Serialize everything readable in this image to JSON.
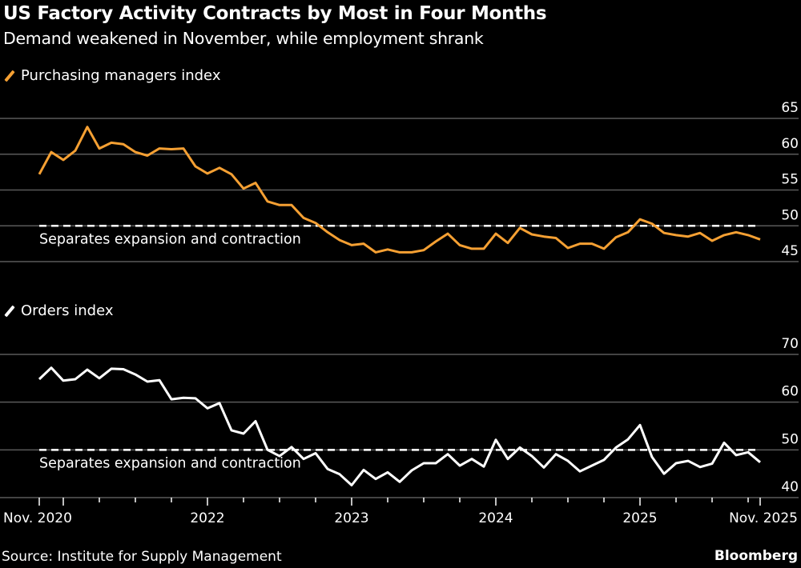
{
  "header": {
    "title": "US Factory Activity Contracts by Most in Four Months",
    "subtitle": "Demand weakened in November, while employment shrank"
  },
  "footer": {
    "source": "Source: Institute for Supply Management",
    "brand": "Bloomberg"
  },
  "colors": {
    "pmi": "#f5a033",
    "orders": "#ffffff",
    "grid": "#5a5a5a",
    "background": "#000000"
  },
  "chart_data": [
    {
      "type": "line",
      "x_start": "2020-11",
      "x_end": "2025-11",
      "x_frequency": "monthly",
      "series": [
        {
          "name": "Purchasing managers index",
          "color": "#f5a033",
          "values": [
            57.2,
            60.3,
            59.2,
            60.5,
            63.8,
            60.8,
            61.6,
            61.4,
            60.3,
            59.8,
            60.8,
            60.7,
            60.8,
            58.3,
            57.3,
            58.1,
            57.2,
            55.2,
            56.0,
            53.4,
            52.9,
            52.9,
            51.1,
            50.4,
            49.1,
            48.0,
            47.3,
            47.5,
            46.3,
            46.7,
            46.3,
            46.3,
            46.6,
            47.8,
            48.9,
            47.3,
            46.8,
            46.8,
            48.9,
            47.6,
            49.7,
            48.8,
            48.5,
            48.3,
            46.9,
            47.5,
            47.5,
            46.8,
            48.4,
            49.1,
            50.9,
            50.3,
            49.0,
            48.7,
            48.5,
            49.0,
            47.9,
            48.7,
            49.1,
            48.7,
            48.1
          ]
        }
      ],
      "yticks": [
        45,
        50,
        55,
        60,
        65
      ],
      "ylim": [
        43,
        66
      ],
      "reference_line": {
        "value": 50,
        "label": "Separates expansion and contraction"
      },
      "grid": true
    },
    {
      "type": "line",
      "x_start": "2020-11",
      "x_end": "2025-11",
      "x_frequency": "monthly",
      "series": [
        {
          "name": "Orders index",
          "color": "#ffffff",
          "values": [
            64.8,
            67.2,
            64.5,
            64.8,
            66.8,
            65.0,
            67.0,
            66.9,
            65.8,
            64.3,
            64.6,
            60.6,
            60.9,
            60.8,
            58.7,
            59.8,
            54.1,
            53.4,
            56.0,
            50.0,
            48.7,
            50.6,
            48.1,
            49.3,
            46.0,
            44.9,
            42.6,
            45.8,
            43.9,
            45.3,
            43.3,
            45.7,
            47.2,
            47.2,
            49.1,
            46.7,
            48.1,
            46.5,
            52.1,
            48.1,
            50.5,
            48.7,
            46.3,
            49.1,
            47.7,
            45.5,
            46.7,
            47.9,
            50.5,
            52.2,
            55.2,
            48.5,
            45.0,
            47.2,
            47.7,
            46.4,
            47.1,
            51.5,
            48.9,
            49.5,
            47.4
          ]
        }
      ],
      "yticks": [
        40,
        50,
        60,
        70
      ],
      "ylim": [
        40,
        72
      ],
      "reference_line": {
        "value": 50,
        "label": "Separates expansion and contraction"
      },
      "grid": true,
      "xtick_labels": [
        {
          "label": "Nov. 2020",
          "date": "2020-11"
        },
        {
          "label": "2022",
          "date": "2022-01"
        },
        {
          "label": "2023",
          "date": "2023-01"
        },
        {
          "label": "2024",
          "date": "2024-01"
        },
        {
          "label": "2025",
          "date": "2025-01"
        },
        {
          "label": "Nov. 2025",
          "date": "2025-11"
        }
      ]
    }
  ]
}
